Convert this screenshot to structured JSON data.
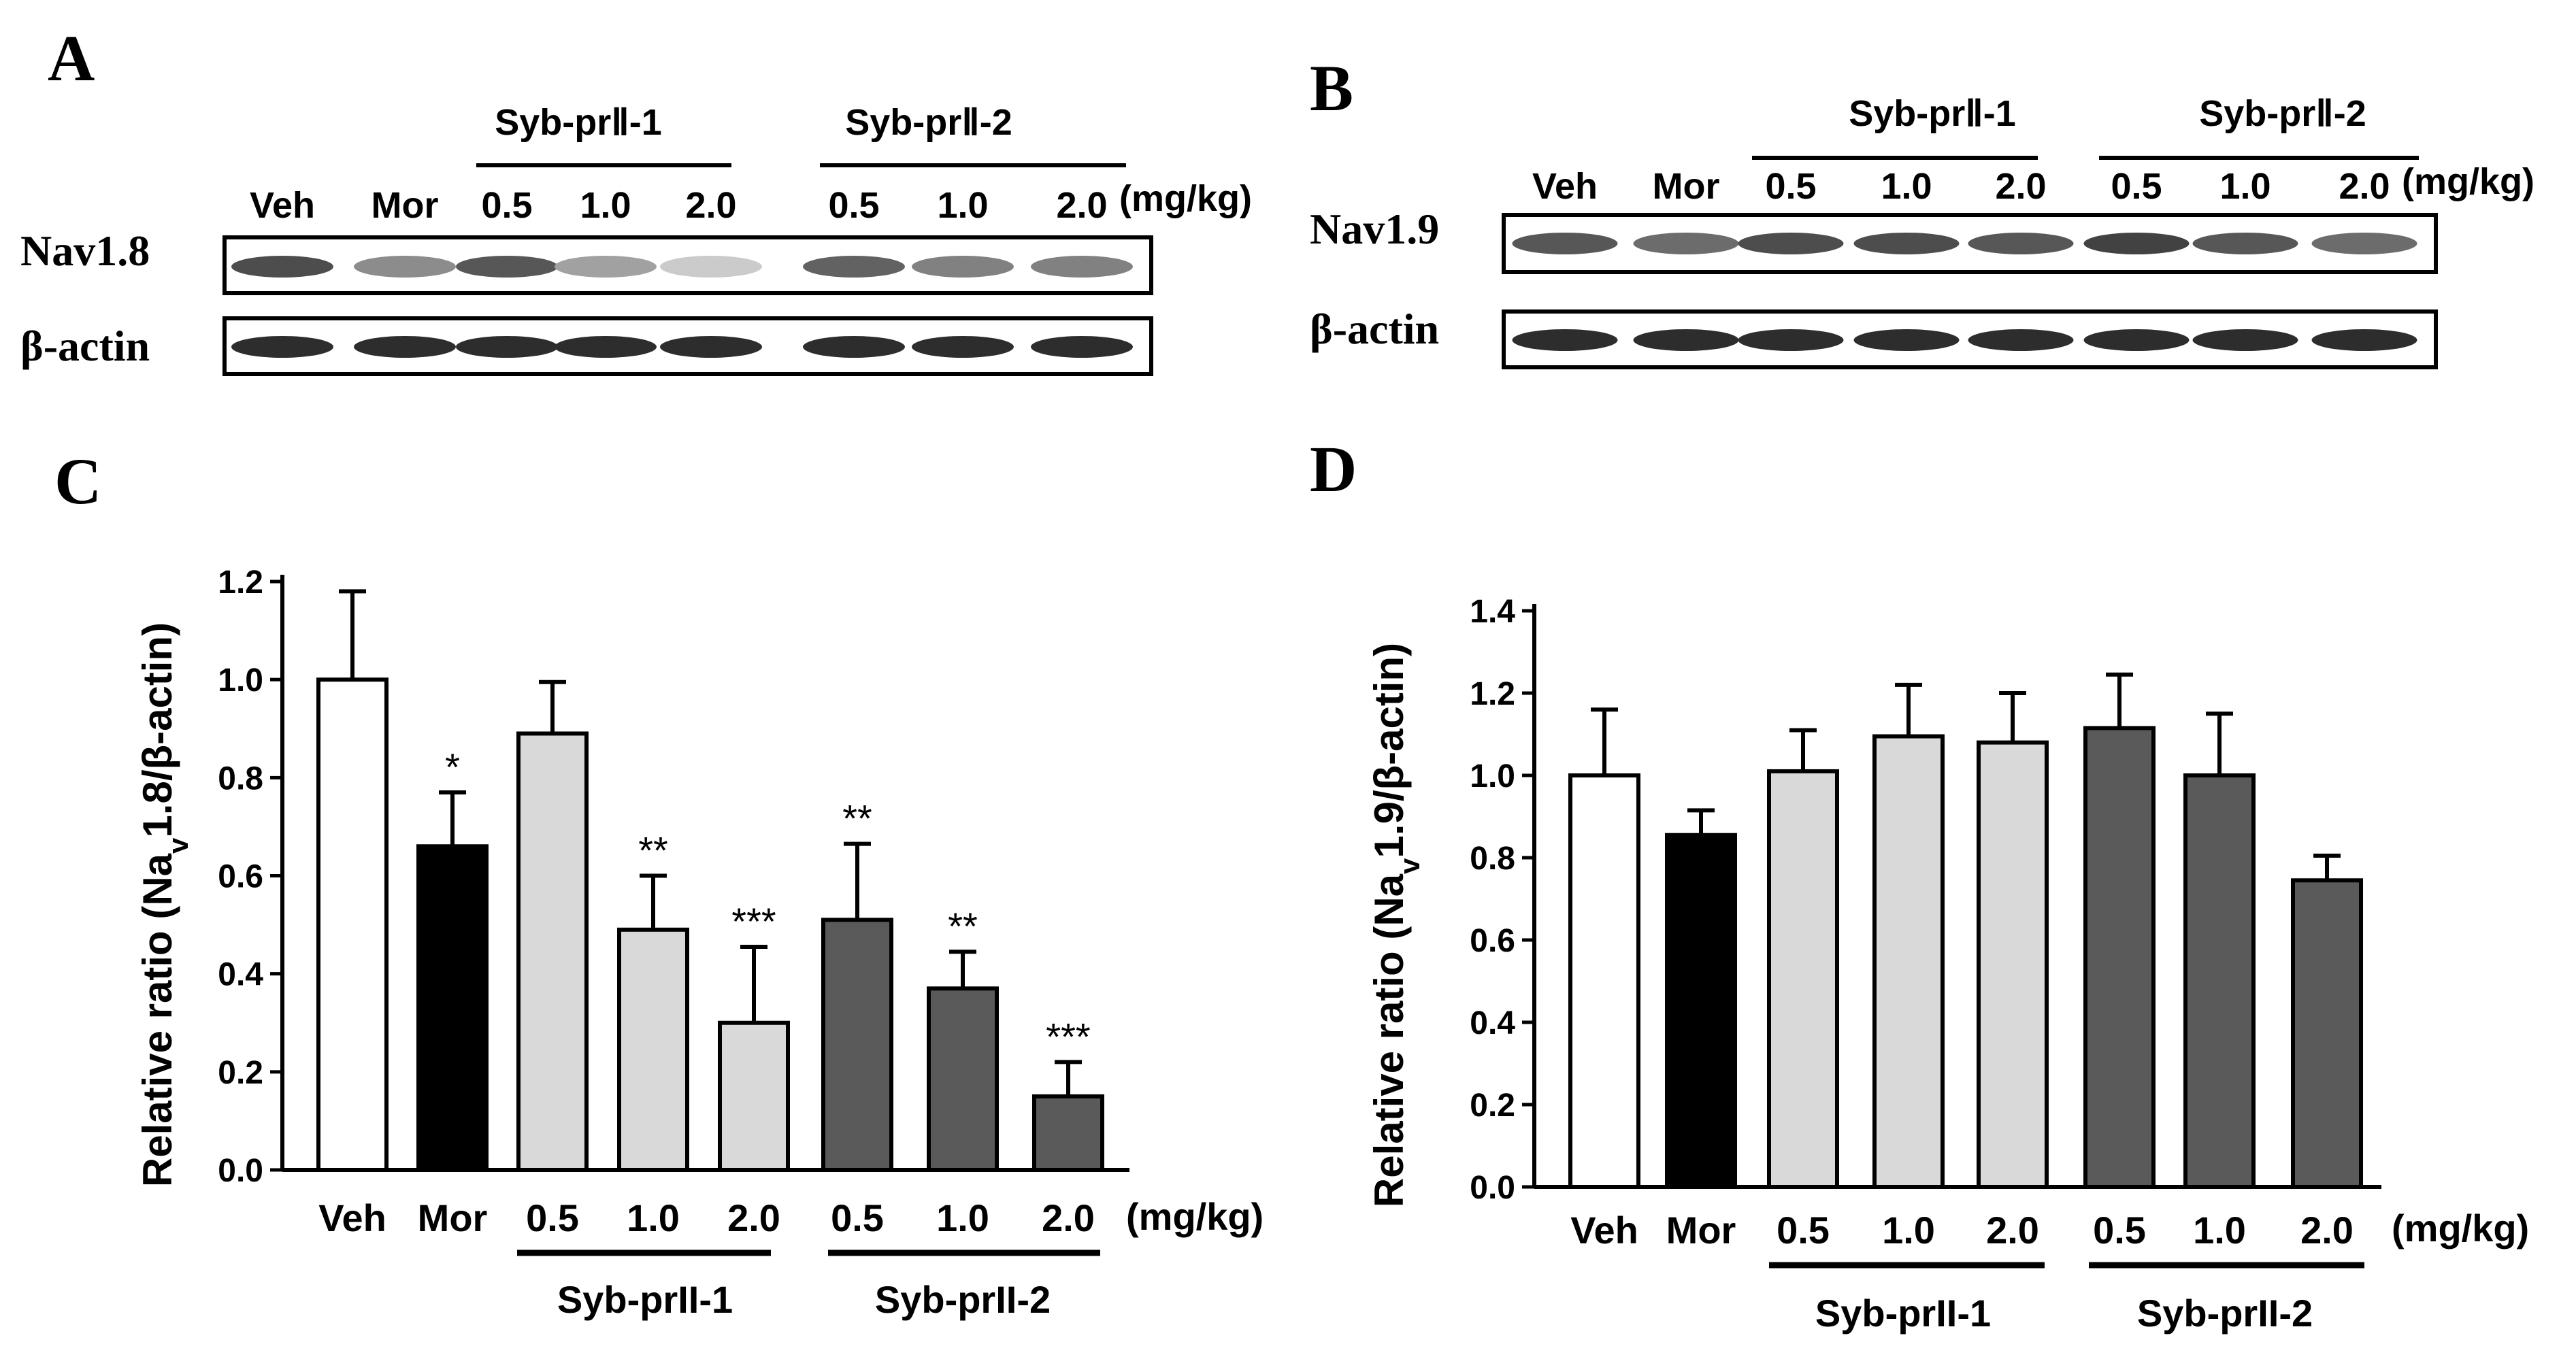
{
  "panel_letters": {
    "a": "A",
    "b": "B",
    "c": "C",
    "d": "D"
  },
  "blot_a": {
    "lane_labels": [
      "Veh",
      "Mor",
      "0.5",
      "1.0",
      "2.0",
      "0.5",
      "1.0",
      "2.0"
    ],
    "unit": "(mg/kg)",
    "group1": "Syb-prⅡ-1",
    "group2": "Syb-prⅡ-2",
    "rows": [
      "Nav1.8",
      "β-actin"
    ],
    "band_intensity": [
      [
        0.85,
        0.55,
        0.8,
        0.45,
        0.25,
        0.75,
        0.6,
        0.6
      ],
      [
        1,
        1,
        1,
        1,
        1,
        1,
        1,
        1
      ]
    ]
  },
  "blot_b": {
    "lane_labels": [
      "Veh",
      "Mor",
      "0.5",
      "1.0",
      "2.0",
      "0.5",
      "1.0",
      "2.0"
    ],
    "unit": "(mg/kg)",
    "group1": "Syb-prⅡ-1",
    "group2": "Syb-prⅡ-2",
    "rows": [
      "Nav1.9",
      "β-actin"
    ],
    "band_intensity": [
      [
        0.8,
        0.7,
        0.85,
        0.85,
        0.8,
        0.9,
        0.8,
        0.7
      ],
      [
        1,
        1,
        1,
        1,
        1,
        1,
        1,
        1
      ]
    ]
  },
  "chart_data": [
    {
      "panel": "C",
      "type": "bar",
      "categories": [
        "Veh",
        "Mor",
        "0.5",
        "1.0",
        "2.0",
        "0.5",
        "1.0",
        "2.0"
      ],
      "values": [
        1.0,
        0.66,
        0.89,
        0.49,
        0.3,
        0.51,
        0.37,
        0.15
      ],
      "errors": [
        0.18,
        0.11,
        0.105,
        0.11,
        0.155,
        0.155,
        0.075,
        0.07
      ],
      "significance": [
        "",
        "*",
        "",
        "**",
        "***",
        "**",
        "**",
        "***"
      ],
      "colors": [
        "#ffffff",
        "#000000",
        "#d9d9d9",
        "#d9d9d9",
        "#d9d9d9",
        "#5a5a5a",
        "#5a5a5a",
        "#5a5a5a"
      ],
      "ylabel_pre": "Relative ratio (Na",
      "ylabel_sub": "v",
      "ylabel_post": "1.8/β-actin)",
      "yticks": [
        "0.0",
        "0.2",
        "0.4",
        "0.6",
        "0.8",
        "1.0",
        "1.2"
      ],
      "ylim": [
        0,
        1.2
      ],
      "unit": "(mg/kg)",
      "group1": "Syb-prII-1",
      "group2": "Syb-prII-2"
    },
    {
      "panel": "D",
      "type": "bar",
      "categories": [
        "Veh",
        "Mor",
        "0.5",
        "1.0",
        "2.0",
        "0.5",
        "1.0",
        "2.0"
      ],
      "values": [
        1.0,
        0.855,
        1.01,
        1.095,
        1.08,
        1.115,
        1.0,
        0.745
      ],
      "errors": [
        0.16,
        0.06,
        0.1,
        0.125,
        0.12,
        0.13,
        0.15,
        0.06
      ],
      "significance": [
        "",
        "",
        "",
        "",
        "",
        "",
        "",
        ""
      ],
      "colors": [
        "#ffffff",
        "#000000",
        "#d9d9d9",
        "#d9d9d9",
        "#d9d9d9",
        "#5a5a5a",
        "#5a5a5a",
        "#5a5a5a"
      ],
      "ylabel_pre": "Relative ratio (Na",
      "ylabel_sub": "v",
      "ylabel_post": "1.9/β-actin)",
      "yticks": [
        "0.0",
        "0.2",
        "0.4",
        "0.6",
        "0.8",
        "1.0",
        "1.2",
        "1.4"
      ],
      "ylim": [
        0,
        1.4
      ],
      "unit": "(mg/kg)",
      "group1": "Syb-prII-1",
      "group2": "Syb-prII-2"
    }
  ]
}
